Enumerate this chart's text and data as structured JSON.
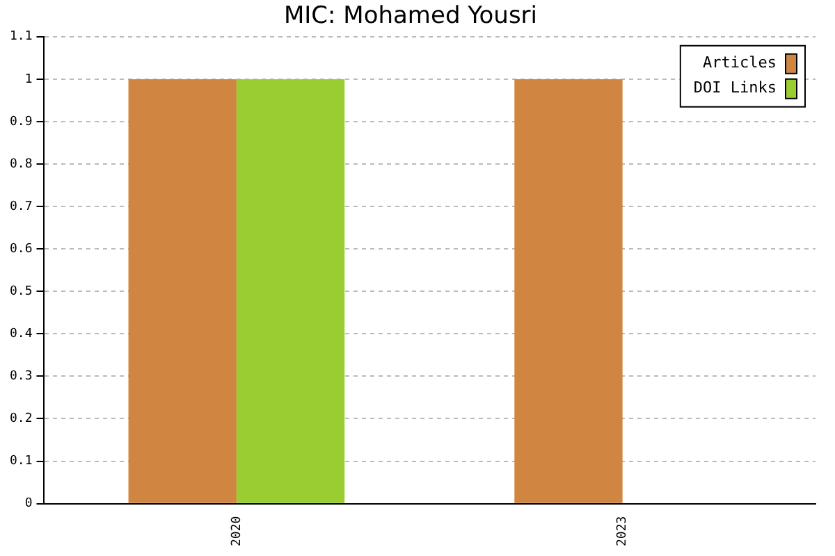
{
  "chart_data": {
    "type": "bar",
    "title": "MIC: Mohamed Yousri",
    "categories": [
      "2020",
      "2023"
    ],
    "series": [
      {
        "name": "Articles",
        "color": "#d08641",
        "values": [
          1,
          1
        ]
      },
      {
        "name": "DOI Links",
        "color": "#9acd32",
        "values": [
          1,
          0
        ]
      }
    ],
    "ylim": [
      0,
      1.1
    ],
    "yticks": [
      0,
      0.1,
      0.2,
      0.3,
      0.4,
      0.5,
      0.6,
      0.7,
      0.8,
      0.9,
      1,
      1.1
    ],
    "grid": "y",
    "legend": "top right"
  }
}
